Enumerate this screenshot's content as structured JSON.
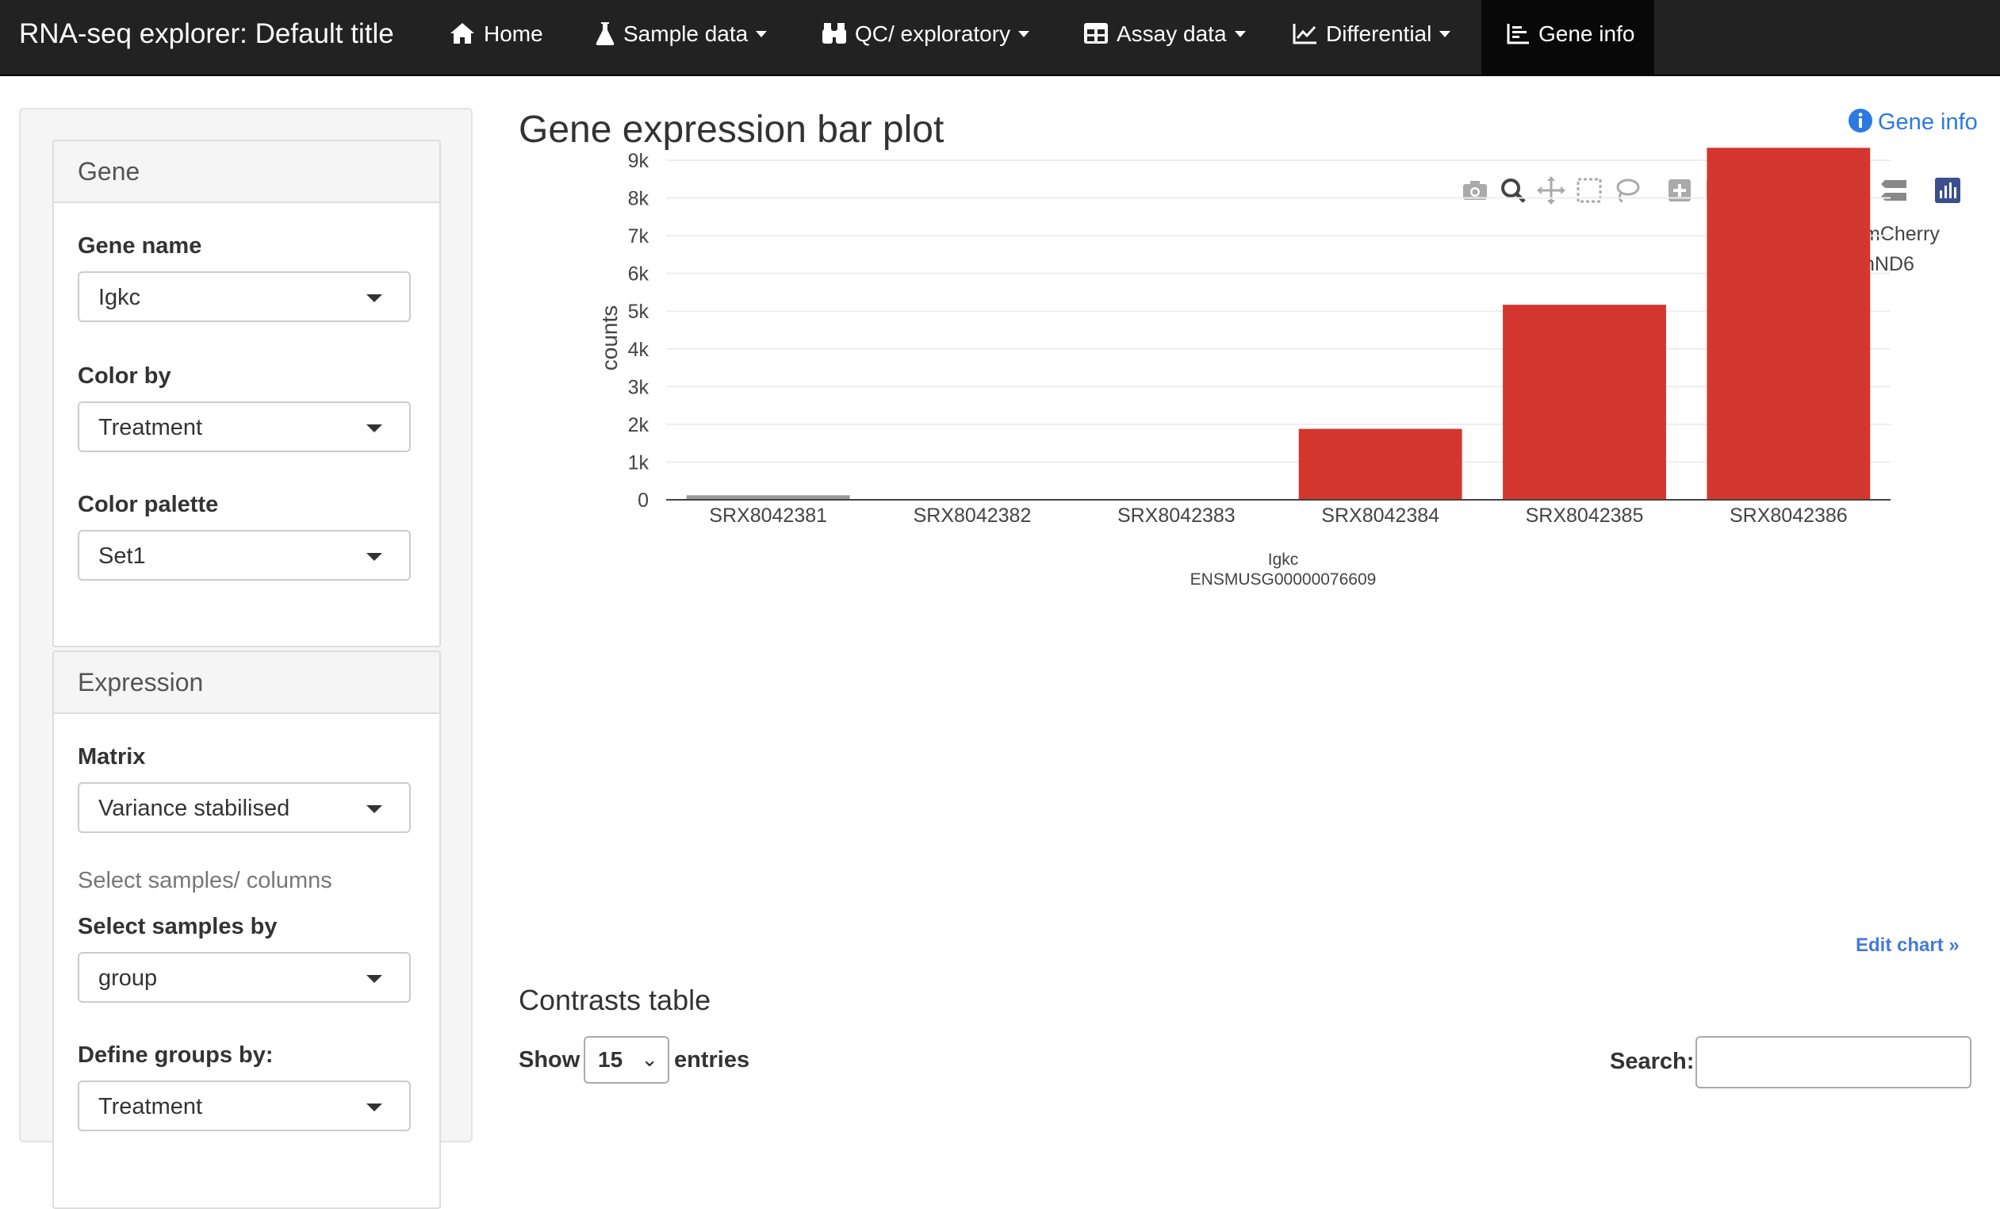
{
  "navbar": {
    "brand": "RNA-seq explorer: Default title",
    "items": [
      {
        "label": "Home",
        "icon": "home-icon",
        "dropdown": false,
        "active": false
      },
      {
        "label": "Sample data",
        "icon": "flask-icon",
        "dropdown": true,
        "active": false
      },
      {
        "label": "QC/ exploratory",
        "icon": "binoculars-icon",
        "dropdown": true,
        "active": false
      },
      {
        "label": "Assay data",
        "icon": "table-icon",
        "dropdown": true,
        "active": false
      },
      {
        "label": "Differential",
        "icon": "line-chart-icon",
        "dropdown": true,
        "active": false
      },
      {
        "label": "Gene info",
        "icon": "bar-list-icon",
        "dropdown": false,
        "active": true
      }
    ]
  },
  "sidebar": {
    "gene_panel": {
      "heading": "Gene",
      "gene_name_label": "Gene name",
      "gene_name_value": "Igkc",
      "color_by_label": "Color by",
      "color_by_value": "Treatment",
      "palette_label": "Color palette",
      "palette_value": "Set1"
    },
    "expression_panel": {
      "heading": "Expression",
      "matrix_label": "Matrix",
      "matrix_value": "Variance stabilised",
      "select_samples_note": "Select samples/ columns",
      "select_by_label": "Select samples by",
      "select_by_value": "group",
      "define_groups_label": "Define groups by:",
      "define_groups_value": "Treatment"
    }
  },
  "main": {
    "title": "Gene expression bar plot",
    "gene_info_link": "Gene info",
    "edit_chart": "Edit chart »",
    "contrasts_title": "Contrasts table",
    "show_label": "Show",
    "entries_value": "15",
    "entries_label": "entries",
    "search_label": "Search:",
    "search_value": ""
  },
  "modebar_icons": [
    "camera-icon",
    "zoom-icon",
    "pan-icon",
    "box-select-icon",
    "lasso-icon",
    "zoom-in-icon",
    "zoom-out-icon",
    "autoscale-icon",
    "reset-axes-icon",
    "hover-closest-icon",
    "hover-compare-icon",
    "plotly-logo-icon"
  ],
  "colors": {
    "navbar_bg": "#222222",
    "link": "#2a7ae2",
    "mCherry": "#999999",
    "hND6": "#d3372f"
  },
  "chart_data": {
    "type": "bar",
    "categories": [
      "SRX8042381",
      "SRX8042382",
      "SRX8042383",
      "SRX8042384",
      "SRX8042385",
      "SRX8042386"
    ],
    "values": [
      120,
      10,
      10,
      1880,
      5170,
      9330
    ],
    "groups": [
      "mCherry",
      "mCherry",
      "mCherry",
      "hND6",
      "hND6",
      "hND6"
    ],
    "legend": [
      {
        "name": "mCherry",
        "color": "#999999"
      },
      {
        "name": "hND6",
        "color": "#d3372f"
      }
    ],
    "legend_position": "top-right",
    "xlabel": "Igkc",
    "xlabel_sub": "ENSMUSG00000076609",
    "ylabel": "counts",
    "yticks": [
      0,
      1000,
      2000,
      3000,
      4000,
      5000,
      6000,
      7000,
      8000,
      9000
    ],
    "ytick_labels": [
      "0",
      "1k",
      "2k",
      "3k",
      "4k",
      "5k",
      "6k",
      "7k",
      "8k",
      "9k"
    ],
    "ylim": [
      0,
      9800
    ],
    "grid": true
  }
}
